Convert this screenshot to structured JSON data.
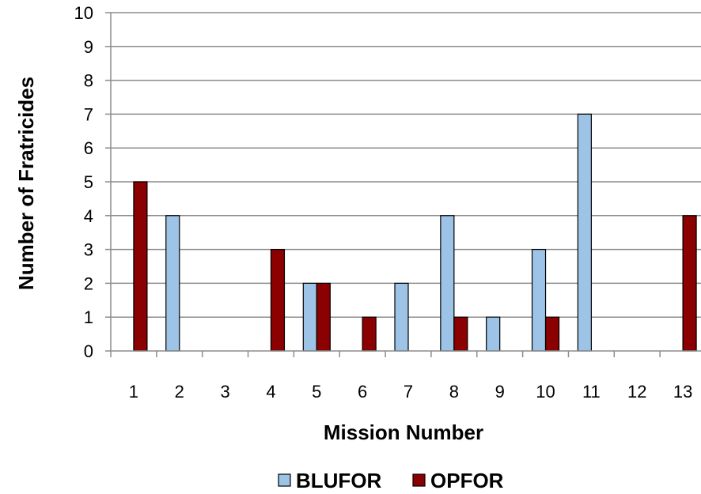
{
  "chart_data": {
    "type": "bar",
    "title": "",
    "xlabel": "Mission Number",
    "ylabel": "Number of Fratricides",
    "ylim": [
      0,
      10
    ],
    "yticks": [
      0,
      1,
      2,
      3,
      4,
      5,
      6,
      7,
      8,
      9,
      10
    ],
    "grid": true,
    "legend_position": "bottom",
    "categories": [
      "1",
      "2",
      "3",
      "4",
      "5",
      "6",
      "7",
      "8",
      "9",
      "10",
      "11",
      "12",
      "13"
    ],
    "series": [
      {
        "name": "BLUFOR",
        "color": "#9DC3E6",
        "values": [
          0,
          4,
          0,
          0,
          2,
          0,
          2,
          4,
          1,
          3,
          7,
          0,
          0
        ]
      },
      {
        "name": "OPFOR",
        "color": "#8B0000",
        "values": [
          5,
          0,
          0,
          3,
          2,
          1,
          0,
          1,
          0,
          1,
          0,
          0,
          4
        ]
      }
    ]
  }
}
